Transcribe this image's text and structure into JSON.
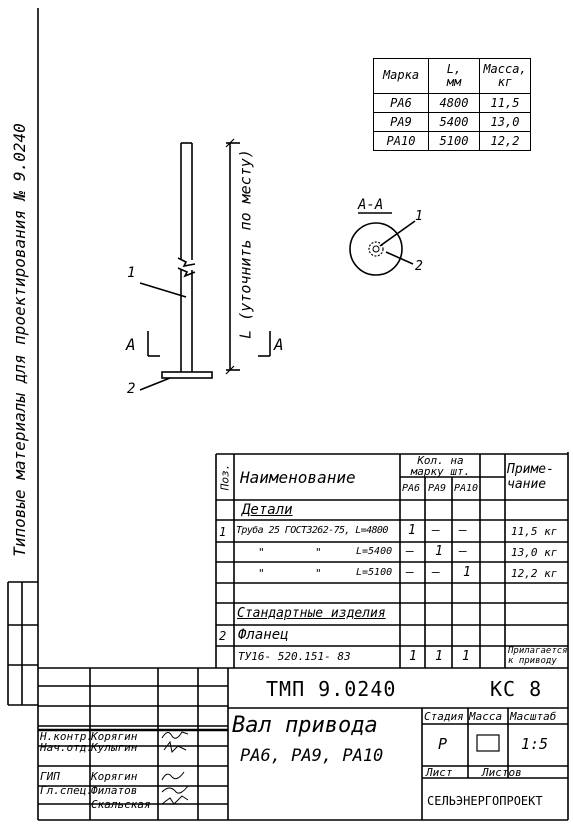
{
  "margin_caption": "Типовые материалы для проектирования № 9.0240",
  "drawing": {
    "dim_label": "L (уточнить по месту)",
    "callout_1": "1",
    "callout_2": "2",
    "section_mark": "А",
    "section_title": "А-А"
  },
  "mass_table": {
    "headers": [
      "Марка",
      "L,",
      "Масса,"
    ],
    "units": [
      "мм",
      "кг"
    ],
    "rows": [
      [
        "РА6",
        "4800",
        "11,5"
      ],
      [
        "РА9",
        "5400",
        "13,0"
      ],
      [
        "РА10",
        "5100",
        "12,2"
      ]
    ]
  },
  "spec": {
    "headers": {
      "pos": "Поз.",
      "name": "Наименование",
      "qty": "Кол. на марку шт.",
      "brands": [
        "РА6",
        "РА9",
        "РА10"
      ],
      "note_1": "Приме-",
      "note_2": "чание"
    },
    "section_parts": "Детали",
    "section_standard": "Стандартные изделия",
    "rows": [
      {
        "pos": "1",
        "name": "Труба 25 ГОСТ3262-75, L=4800",
        "q1": "1",
        "q2": "—",
        "q3": "—",
        "note": "11,5 кг"
      },
      {
        "ditto_1": "\"",
        "ditto_2": "\"",
        "length": "L=5400",
        "q1": "—",
        "q2": "1",
        "q3": "—",
        "note": "13,0 кг"
      },
      {
        "ditto_1": "\"",
        "ditto_2": "\"",
        "length": "L=5100",
        "q1": "—",
        "q2": "—",
        "q3": "1",
        "note": "12,2 кг"
      },
      {
        "pos": "2",
        "name": "Фланец"
      },
      {
        "name": "ТУ16- 520.151- 83",
        "q1": "1",
        "q2": "1",
        "q3": "1",
        "note_1": "Прилагается",
        "note_2": "к приводу"
      }
    ]
  },
  "title_block": {
    "doc_number": "ТМП 9.0240",
    "code": "КС 8",
    "title": "Вал привода",
    "subtitle": "РА6, РА9, РА10",
    "stage_label": "Стадия",
    "mass_label": "Масса",
    "scale_label": "Масштаб",
    "stage": "Р",
    "scale": "1:5",
    "sheet_label": "Лист",
    "sheets_label": "Листов",
    "organization": "СЕЛЬЭНЕРГОПРОЕКТ"
  },
  "signatures": [
    {
      "role": "Н.контр.",
      "name": "Корягин"
    },
    {
      "role": "Нач.отд.",
      "name": "Кулыгин"
    },
    {
      "role": "ГИП",
      "name": "Корягин"
    },
    {
      "role": "Гл.спец.",
      "name": "Филатов"
    },
    {
      "name": "Скальская"
    }
  ]
}
